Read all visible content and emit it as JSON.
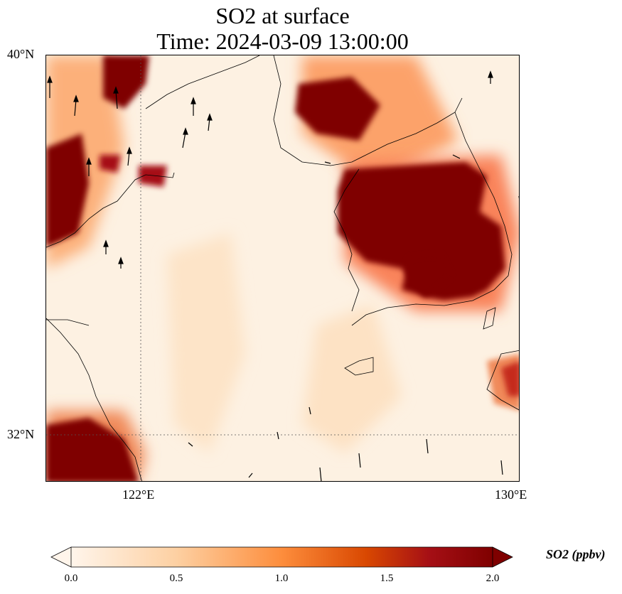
{
  "title": {
    "line1": "SO2 at surface",
    "line2": "Time: 2024-03-09 13:00:00"
  },
  "axes": {
    "y_ticks": [
      "40°N",
      "32°N"
    ],
    "x_ticks": [
      "122°E",
      "130°E"
    ]
  },
  "colorbar": {
    "label": "SO2 (ppbv)",
    "ticks": [
      "0.0",
      "0.5",
      "1.0",
      "1.5",
      "2.0"
    ],
    "colors": [
      "#fff5eb",
      "#fdd0a2",
      "#fd8d3c",
      "#d94801",
      "#a50f15",
      "#7f0000"
    ]
  },
  "map_data": {
    "variable": "SO2",
    "units": "ppbv",
    "lon_range": [
      120,
      130
    ],
    "lat_range": [
      31,
      40
    ],
    "color_range": [
      0.0,
      2.0
    ],
    "gridlines": {
      "lon": [
        122
      ],
      "lat": [
        32
      ]
    },
    "hotspots": [
      {
        "label": "",
        "lon": 127.6,
        "lat": 35.9,
        "value": 2.0
      },
      {
        "label": "",
        "lon": 126.5,
        "lat": 38.8,
        "value": 2.0
      },
      {
        "label": "",
        "lon": 120.4,
        "lat": 36.7,
        "value": 2.0
      },
      {
        "label": "",
        "lon": 120.9,
        "lat": 31.4,
        "value": 2.0
      },
      {
        "label": "",
        "lon": 121.6,
        "lat": 39.4,
        "value": 2.0
      },
      {
        "label": "",
        "lon": 122.2,
        "lat": 36.5,
        "value": 1.7
      },
      {
        "label": "",
        "lon": 129.6,
        "lat": 32.8,
        "value": 1.2
      }
    ]
  }
}
